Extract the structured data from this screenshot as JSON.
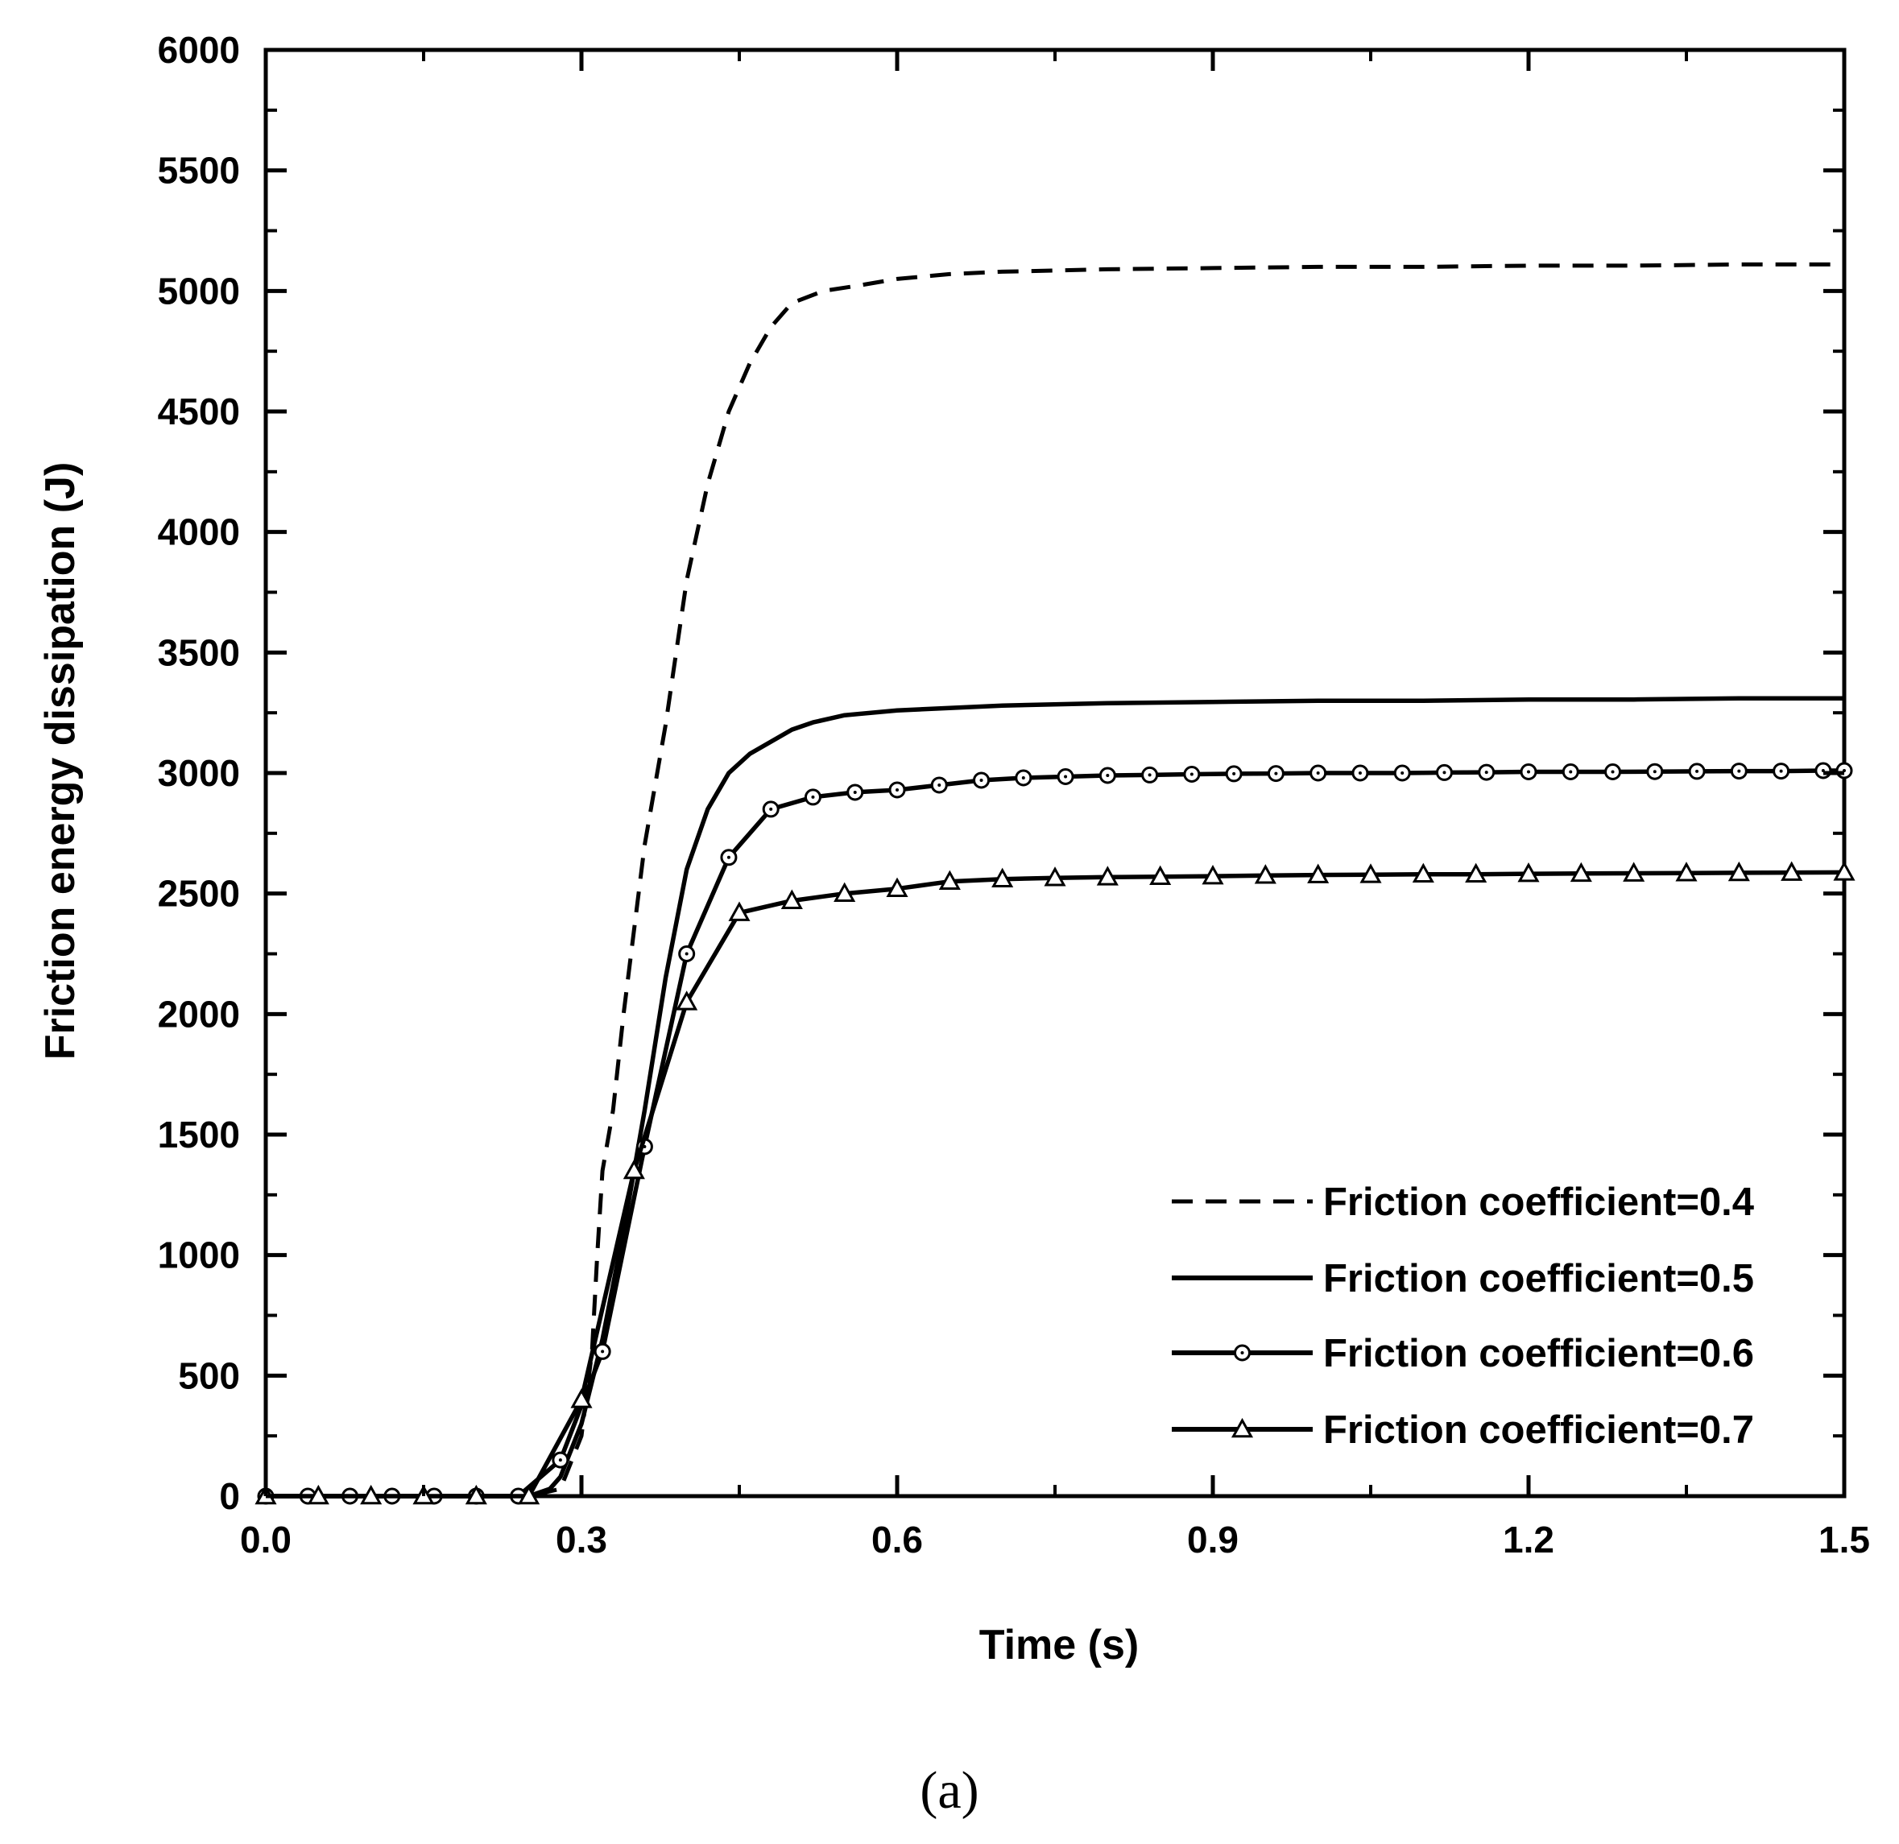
{
  "chart_data": {
    "type": "line",
    "xlabel": "Time (s)",
    "ylabel": "Friction energy dissipation (J)",
    "xlim": [
      0,
      1.5
    ],
    "ylim": [
      0,
      6000
    ],
    "xticks": [
      0.0,
      0.3,
      0.6,
      0.9,
      1.2,
      1.5
    ],
    "xtick_labels": [
      "0.0",
      "0.3",
      "0.6",
      "0.9",
      "1.2",
      "1.5"
    ],
    "yticks": [
      0,
      500,
      1000,
      1500,
      2000,
      2500,
      3000,
      3500,
      4000,
      4500,
      5000,
      5500,
      6000
    ],
    "ytick_labels": [
      "0",
      "500",
      "1000",
      "1500",
      "2000",
      "2500",
      "3000",
      "3500",
      "4000",
      "4500",
      "5000",
      "5500",
      "6000"
    ],
    "grid": false,
    "legend_position": "bottom-right",
    "panel_label": "(a)",
    "series": [
      {
        "name": "Friction coefficient=0.4",
        "style": "dashed",
        "marker": "none",
        "x": [
          0,
          0.1,
          0.2,
          0.25,
          0.28,
          0.3,
          0.31,
          0.315,
          0.32,
          0.33,
          0.34,
          0.36,
          0.38,
          0.4,
          0.42,
          0.43,
          0.44,
          0.46,
          0.48,
          0.5,
          0.53,
          0.56,
          0.6,
          0.65,
          0.7,
          0.8,
          0.9,
          1.0,
          1.1,
          1.2,
          1.3,
          1.4,
          1.5
        ],
        "y": [
          0,
          0,
          0,
          0,
          30,
          250,
          600,
          1000,
          1350,
          1600,
          2000,
          2700,
          3200,
          3800,
          4200,
          4350,
          4500,
          4700,
          4850,
          4950,
          5000,
          5020,
          5050,
          5070,
          5080,
          5090,
          5095,
          5100,
          5100,
          5105,
          5105,
          5110,
          5110
        ]
      },
      {
        "name": "Friction coefficient=0.5",
        "style": "solid",
        "marker": "none",
        "x": [
          0,
          0.1,
          0.2,
          0.25,
          0.27,
          0.28,
          0.3,
          0.32,
          0.34,
          0.36,
          0.38,
          0.4,
          0.42,
          0.44,
          0.46,
          0.48,
          0.5,
          0.52,
          0.55,
          0.6,
          0.7,
          0.8,
          0.9,
          1.0,
          1.1,
          1.2,
          1.3,
          1.4,
          1.5
        ],
        "y": [
          0,
          0,
          0,
          0,
          30,
          80,
          300,
          650,
          1100,
          1600,
          2150,
          2600,
          2850,
          3000,
          3080,
          3130,
          3180,
          3210,
          3240,
          3260,
          3280,
          3290,
          3295,
          3300,
          3300,
          3305,
          3305,
          3310,
          3310
        ]
      },
      {
        "name": "Friction coefficient=0.6",
        "style": "solid",
        "marker": "circle",
        "x": [
          0,
          0.04,
          0.08,
          0.12,
          0.16,
          0.2,
          0.24,
          0.28,
          0.32,
          0.36,
          0.4,
          0.44,
          0.48,
          0.52,
          0.56,
          0.6,
          0.64,
          0.68,
          0.72,
          0.76,
          0.8,
          0.84,
          0.88,
          0.92,
          0.96,
          1.0,
          1.04,
          1.08,
          1.12,
          1.16,
          1.2,
          1.24,
          1.28,
          1.32,
          1.36,
          1.4,
          1.44,
          1.48,
          1.5
        ],
        "y": [
          0,
          0,
          0,
          0,
          0,
          0,
          0,
          150,
          600,
          1450,
          2250,
          2650,
          2850,
          2900,
          2920,
          2930,
          2950,
          2970,
          2980,
          2985,
          2990,
          2992,
          2995,
          2997,
          2998,
          3000,
          3000,
          3000,
          3002,
          3003,
          3005,
          3005,
          3005,
          3006,
          3007,
          3008,
          3008,
          3010,
          3010
        ],
        "marker_every": 1
      },
      {
        "name": "Friction coefficient=0.7",
        "style": "solid",
        "marker": "triangle",
        "x": [
          0,
          0.05,
          0.1,
          0.15,
          0.2,
          0.25,
          0.3,
          0.35,
          0.4,
          0.45,
          0.5,
          0.55,
          0.6,
          0.65,
          0.7,
          0.75,
          0.8,
          0.85,
          0.9,
          0.95,
          1.0,
          1.05,
          1.1,
          1.15,
          1.2,
          1.25,
          1.3,
          1.35,
          1.4,
          1.45,
          1.5
        ],
        "y": [
          0,
          0,
          0,
          0,
          0,
          0,
          400,
          1350,
          2050,
          2420,
          2470,
          2500,
          2520,
          2550,
          2560,
          2565,
          2568,
          2570,
          2572,
          2575,
          2577,
          2578,
          2580,
          2580,
          2582,
          2583,
          2584,
          2585,
          2586,
          2587,
          2588
        ],
        "marker_every": 1
      }
    ]
  }
}
